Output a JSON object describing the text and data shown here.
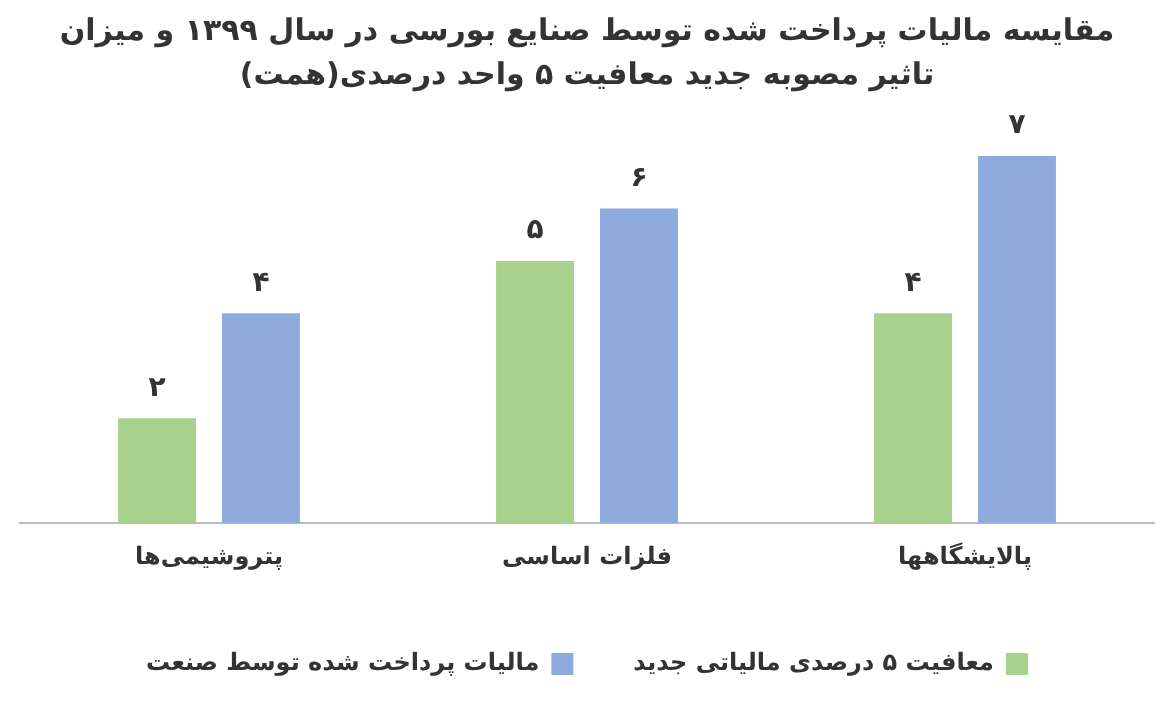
{
  "chart_data": {
    "type": "bar",
    "title": "مقایسه مالیات پرداخت شده توسط صنایع بورسی در سال ۱۳۹۹ و میزان تاثیر مصوبه جدید معافیت ۵ واحد درصدی(همت)",
    "categories": [
      "پتروشیمی‌ها",
      "فلزات اساسی",
      "پالایشگاهها"
    ],
    "series": [
      {
        "name": "معافیت ۵ درصدی مالیاتی جدید",
        "color": "#a9d18e",
        "values": [
          2,
          5,
          4
        ],
        "value_labels": [
          "۲",
          "۵",
          "۴"
        ]
      },
      {
        "name": "مالیات پرداخت شده توسط صنعت",
        "color": "#8faadc",
        "values": [
          4,
          6,
          7
        ],
        "value_labels": [
          "۴",
          "۶",
          "۷"
        ]
      }
    ],
    "grid": false,
    "legend": "bottom"
  }
}
